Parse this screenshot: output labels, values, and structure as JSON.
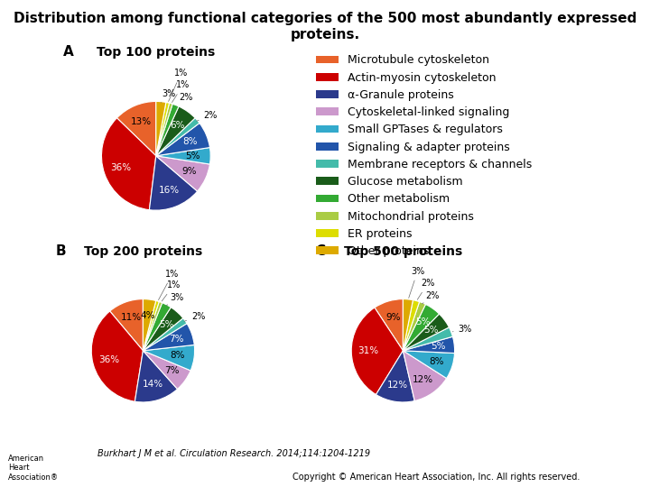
{
  "title": "Distribution among functional categories of the 500 most abundantly expressed proteins.",
  "annotations": [
    "Burkhart J M et al. Circulation Research. 2014;114:1204-1219",
    "Copyright © American Heart Association, Inc. All rights reserved.",
    "American\nHeart\nAssociation®"
  ],
  "chart_data": [
    {
      "type": "pie",
      "title": "Top 100 proteins",
      "annotations": [
        "A"
      ],
      "categories": [
        "Microtubule cytoskeleton",
        "Actin-myosin cytoskeleton",
        "α-Granule proteins",
        "Cytoskeletal-linked signaling",
        "Small GPTases & regulators",
        "Signaling & adapter proteins",
        "Membrane receptors & channels",
        "Glucose metabolism",
        "Other metabolism",
        "Mitochondrial proteins",
        "ER proteins",
        "Other proteins"
      ],
      "values": [
        13,
        36,
        16,
        9,
        5,
        8,
        2,
        6,
        2,
        1,
        1,
        3
      ],
      "value_labels": [
        "13%",
        "36%",
        "16%",
        "9%",
        "5%",
        "8%",
        "2%",
        "6%",
        "2%",
        "1%",
        "1%",
        "3%"
      ],
      "colors": [
        "#E8622A",
        "#CC0000",
        "#2B3A8C",
        "#CC99CC",
        "#33AACC",
        "#2255AA",
        "#44BBAA",
        "#1A5C1A",
        "#33AA33",
        "#AACC44",
        "#DDDD00",
        "#DDAA00"
      ],
      "data_labels": true,
      "legend": "center left"
    },
    {
      "type": "pie",
      "title": "Top 200 proteins",
      "annotations": [
        "B"
      ],
      "categories": [
        "Microtubule cytoskeleton",
        "Actin-myosin cytoskeleton",
        "α-Granule proteins",
        "Cytoskeletal-linked signaling",
        "Small GPTases & regulators",
        "Signaling & adapter proteins",
        "Membrane receptors & channels",
        "Glucose metabolism",
        "Other metabolism",
        "Mitochondrial proteins",
        "ER proteins",
        "Other proteins"
      ],
      "values": [
        11,
        36,
        14,
        7,
        8,
        7,
        2,
        5,
        3,
        1,
        1,
        4
      ],
      "value_labels": [
        "11%",
        "36%",
        "14%",
        "7%",
        "8%",
        "7%",
        "2%",
        "5%",
        "3%",
        "1%",
        "1%",
        "4%"
      ],
      "colors": [
        "#E8622A",
        "#CC0000",
        "#2B3A8C",
        "#CC99CC",
        "#33AACC",
        "#2255AA",
        "#44BBAA",
        "#1A5C1A",
        "#33AA33",
        "#AACC44",
        "#DDDD00",
        "#DDAA00"
      ],
      "data_labels": true
    },
    {
      "type": "pie",
      "title": "Top 500 proteins",
      "annotations": [
        "C"
      ],
      "categories": [
        "Microtubule cytoskeleton",
        "Actin-myosin cytoskeleton",
        "α-Granule proteins",
        "Cytoskeletal-linked signaling",
        "Small GPTases & regulators",
        "Signaling & adapter proteins",
        "Membrane receptors & channels",
        "Glucose metabolism",
        "Other metabolism",
        "Mitochondrial proteins",
        "ER proteins",
        "Other proteins"
      ],
      "values": [
        9,
        31,
        12,
        12,
        8,
        5,
        3,
        5,
        5,
        2,
        2,
        3
      ],
      "value_labels": [
        "9%",
        "31%",
        "12%",
        "12%",
        "8%",
        "5%",
        "3%",
        "5%",
        "5%",
        "2%",
        "2%",
        "3%"
      ],
      "colors": [
        "#E8622A",
        "#CC0000",
        "#2B3A8C",
        "#CC99CC",
        "#33AACC",
        "#2255AA",
        "#44BBAA",
        "#1A5C1A",
        "#33AA33",
        "#AACC44",
        "#DDDD00",
        "#DDAA00"
      ],
      "data_labels": true
    }
  ]
}
